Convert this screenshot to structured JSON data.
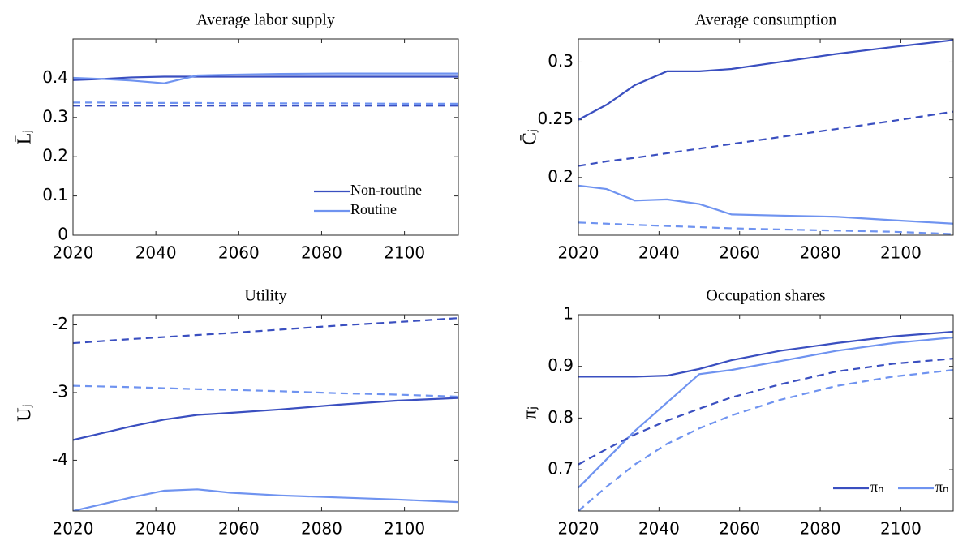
{
  "chart_data": [
    {
      "type": "line",
      "title": "Average labor supply",
      "ylabel": "L̄ⱼ",
      "x": [
        2020,
        2027,
        2034,
        2042,
        2050,
        2058,
        2070,
        2084,
        2098,
        2113
      ],
      "xlim": [
        2020,
        2113
      ],
      "xticks": [
        2020,
        2040,
        2060,
        2080,
        2100
      ],
      "ylim": [
        0,
        0.5
      ],
      "yticks": [
        0,
        0.1,
        0.2,
        0.3,
        0.4
      ],
      "legend": "lower right",
      "legend_ncol": 1,
      "series": [
        {
          "name": "Non-routine",
          "color": "#3a4fc0",
          "linestyle": "solid",
          "values": [
            0.395,
            0.398,
            0.402,
            0.404,
            0.404,
            0.404,
            0.404,
            0.404,
            0.404,
            0.404
          ]
        },
        {
          "name": "Routine",
          "color": "#6f93f0",
          "linestyle": "solid",
          "values": [
            0.401,
            0.398,
            0.394,
            0.387,
            0.407,
            0.409,
            0.411,
            0.412,
            0.412,
            0.412
          ]
        },
        {
          "color": "#3a4fc0",
          "linestyle": "dashed",
          "values": [
            0.33,
            0.33,
            0.33,
            0.33,
            0.33,
            0.33,
            0.33,
            0.33,
            0.33,
            0.33
          ]
        },
        {
          "color": "#6f93f0",
          "linestyle": "dashed",
          "values": [
            0.338,
            0.338,
            0.337,
            0.337,
            0.337,
            0.336,
            0.336,
            0.336,
            0.335,
            0.335
          ]
        }
      ]
    },
    {
      "type": "line",
      "title": "Average consumption",
      "ylabel": "C̄ⱼ",
      "x": [
        2020,
        2027,
        2034,
        2042,
        2050,
        2058,
        2070,
        2084,
        2098,
        2113
      ],
      "xlim": [
        2020,
        2113
      ],
      "xticks": [
        2020,
        2040,
        2060,
        2080,
        2100
      ],
      "ylim": [
        0.15,
        0.32
      ],
      "yticks": [
        0.2,
        0.25,
        0.3
      ],
      "series": [
        {
          "color": "#3a4fc0",
          "linestyle": "solid",
          "values": [
            0.25,
            0.263,
            0.28,
            0.292,
            0.292,
            0.294,
            0.3,
            0.307,
            0.313,
            0.319
          ]
        },
        {
          "color": "#6f93f0",
          "linestyle": "solid",
          "values": [
            0.193,
            0.19,
            0.18,
            0.181,
            0.177,
            0.168,
            0.167,
            0.166,
            0.163,
            0.16
          ]
        },
        {
          "color": "#3a4fc0",
          "linestyle": "dashed",
          "values": [
            0.21,
            0.214,
            0.217,
            0.221,
            0.225,
            0.229,
            0.235,
            0.242,
            0.249,
            0.257
          ]
        },
        {
          "color": "#6f93f0",
          "linestyle": "dashed",
          "values": [
            0.161,
            0.16,
            0.159,
            0.158,
            0.157,
            0.156,
            0.155,
            0.154,
            0.153,
            0.151
          ]
        }
      ]
    },
    {
      "type": "line",
      "title": "Utility",
      "ylabel": "Uⱼ",
      "x": [
        2020,
        2027,
        2034,
        2042,
        2050,
        2058,
        2070,
        2084,
        2098,
        2113
      ],
      "xlim": [
        2020,
        2113
      ],
      "xticks": [
        2020,
        2040,
        2060,
        2080,
        2100
      ],
      "ylim": [
        -4.75,
        -1.85
      ],
      "yticks": [
        -4,
        -3,
        -2
      ],
      "series": [
        {
          "color": "#3a4fc0",
          "linestyle": "solid",
          "values": [
            -3.7,
            -3.6,
            -3.5,
            -3.4,
            -3.33,
            -3.3,
            -3.25,
            -3.18,
            -3.12,
            -3.08
          ]
        },
        {
          "color": "#6f93f0",
          "linestyle": "solid",
          "values": [
            -4.75,
            -4.65,
            -4.55,
            -4.45,
            -4.43,
            -4.48,
            -4.52,
            -4.55,
            -4.58,
            -4.62
          ]
        },
        {
          "color": "#3a4fc0",
          "linestyle": "dashed",
          "values": [
            -2.27,
            -2.24,
            -2.21,
            -2.18,
            -2.15,
            -2.12,
            -2.07,
            -2.01,
            -1.96,
            -1.9
          ]
        },
        {
          "color": "#6f93f0",
          "linestyle": "dashed",
          "values": [
            -2.9,
            -2.91,
            -2.92,
            -2.935,
            -2.95,
            -2.96,
            -2.98,
            -3.01,
            -3.03,
            -3.06
          ]
        }
      ]
    },
    {
      "type": "line",
      "title": "Occupation shares",
      "ylabel": "πⱼ",
      "x": [
        2020,
        2027,
        2034,
        2042,
        2050,
        2058,
        2070,
        2084,
        2098,
        2113
      ],
      "xlim": [
        2020,
        2113
      ],
      "xticks": [
        2020,
        2040,
        2060,
        2080,
        2100
      ],
      "ylim": [
        0.62,
        1
      ],
      "yticks": [
        0.7,
        0.8,
        0.9,
        1
      ],
      "legend": "lower right",
      "legend_ncol": 2,
      "series": [
        {
          "name": "πₙ",
          "color": "#3a4fc0",
          "linestyle": "solid",
          "values": [
            0.88,
            0.88,
            0.88,
            0.882,
            0.895,
            0.912,
            0.93,
            0.945,
            0.958,
            0.967
          ]
        },
        {
          "name": "π̄ₙ",
          "color": "#6f93f0",
          "linestyle": "solid",
          "values": [
            0.665,
            0.72,
            0.775,
            0.83,
            0.885,
            0.893,
            0.91,
            0.93,
            0.945,
            0.956
          ]
        },
        {
          "color": "#3a4fc0",
          "linestyle": "dashed",
          "values": [
            0.71,
            0.74,
            0.768,
            0.795,
            0.818,
            0.84,
            0.865,
            0.89,
            0.905,
            0.915
          ]
        },
        {
          "color": "#6f93f0",
          "linestyle": "dashed",
          "values": [
            0.62,
            0.667,
            0.71,
            0.75,
            0.78,
            0.805,
            0.835,
            0.862,
            0.88,
            0.893
          ]
        }
      ]
    }
  ]
}
